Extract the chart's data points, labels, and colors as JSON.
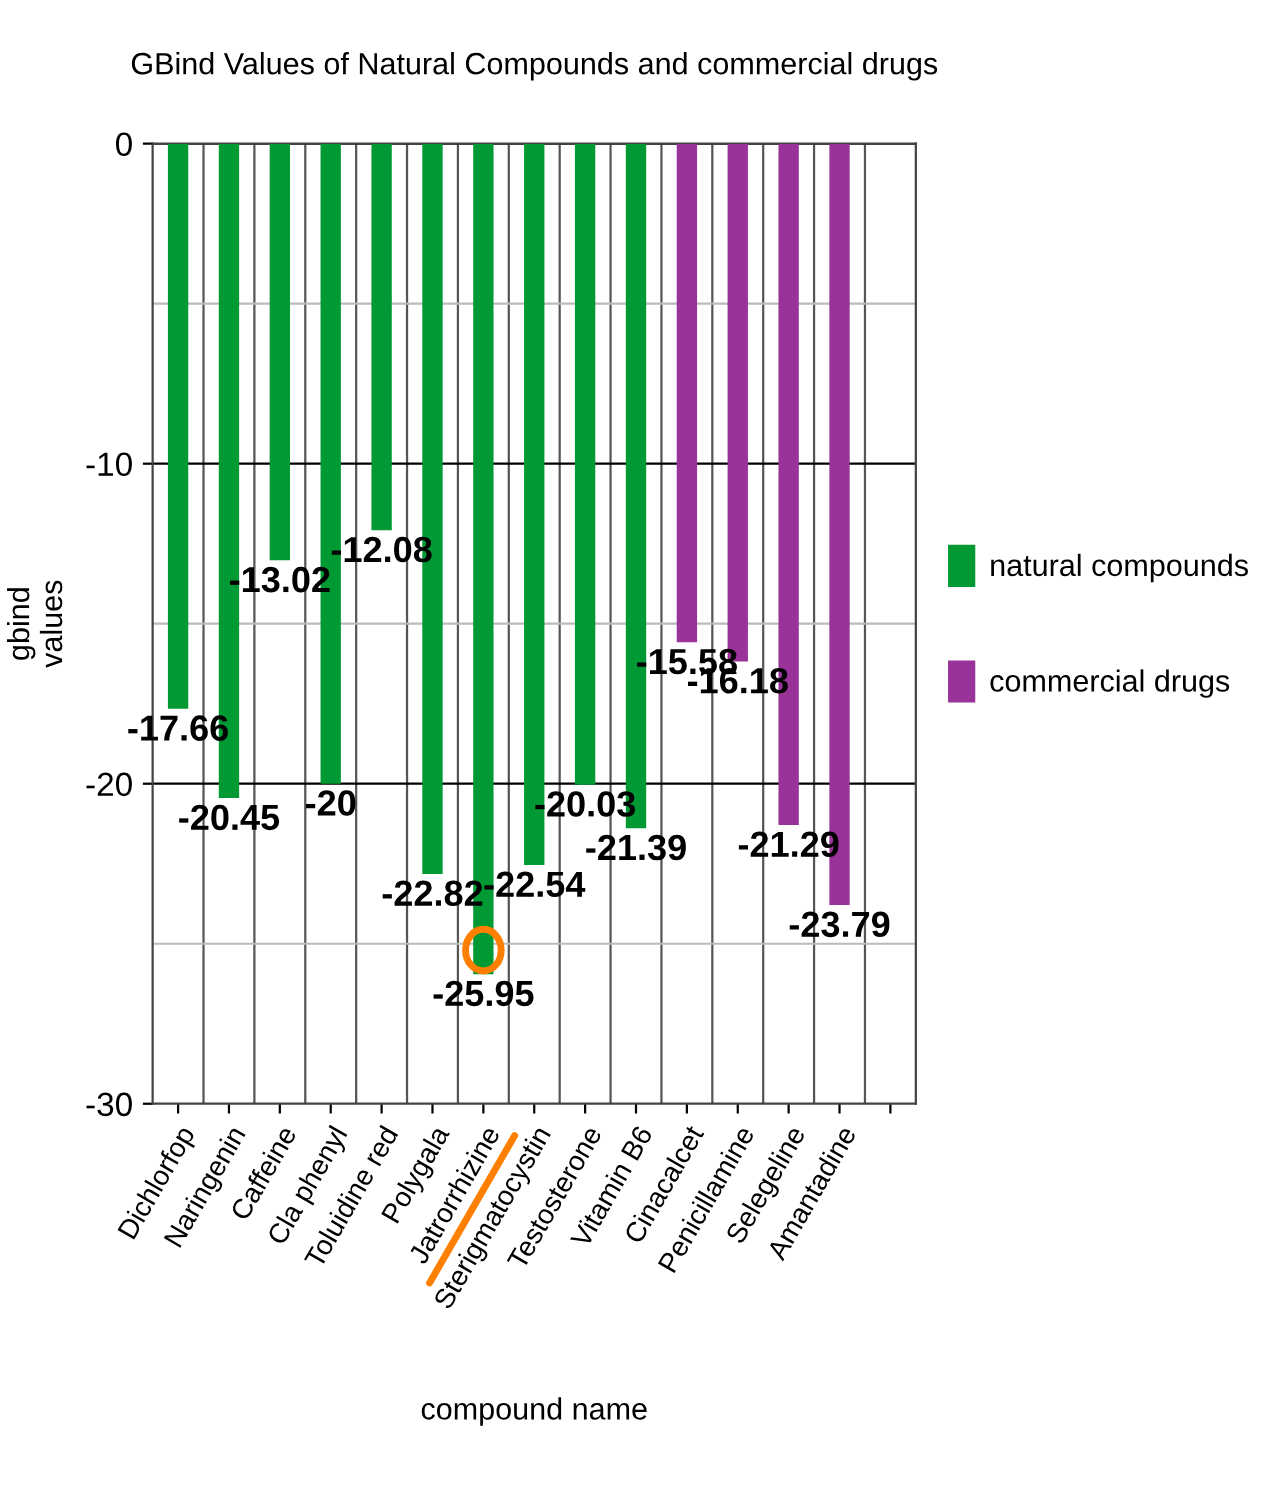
{
  "chart_data": {
    "type": "bar",
    "title": "GBind Values of Natural Compounds and commercial drugs",
    "xlabel": "compound name",
    "ylabel": "gbind\nvalues",
    "categories": [
      "Dichlorfop",
      "Naringenin",
      "Caffeine",
      "Cla phenyl",
      "Toluidine red",
      "Polygala",
      "Jatrorrhizine",
      "Sterigmatocystin",
      "Testosterone",
      "Vitamin B6",
      "Cinacalcet",
      "Penicillamine",
      "Selegeline",
      "Amantadine",
      null
    ],
    "series": [
      {
        "name": "natural compounds",
        "color": "#009933",
        "values": [
          -17.66,
          -20.45,
          -13.02,
          -20,
          -12.08,
          -22.82,
          -25.95,
          -22.54,
          -20.03,
          -21.39,
          null,
          null,
          null,
          null,
          null
        ]
      },
      {
        "name": "commercial drugs",
        "color": "#993399",
        "values": [
          null,
          null,
          null,
          null,
          null,
          null,
          null,
          null,
          null,
          null,
          -15.58,
          -16.18,
          -21.29,
          -23.79,
          null
        ]
      }
    ],
    "ylim": [
      -30,
      0
    ],
    "yticks": [
      0,
      {
        "value": -5,
        "label": null
      },
      -10,
      {
        "value": -15,
        "label": null
      },
      -20,
      {
        "value": -25,
        "label": null
      },
      -30
    ],
    "grid": true,
    "legend": "right",
    "data_labels": true
  }
}
